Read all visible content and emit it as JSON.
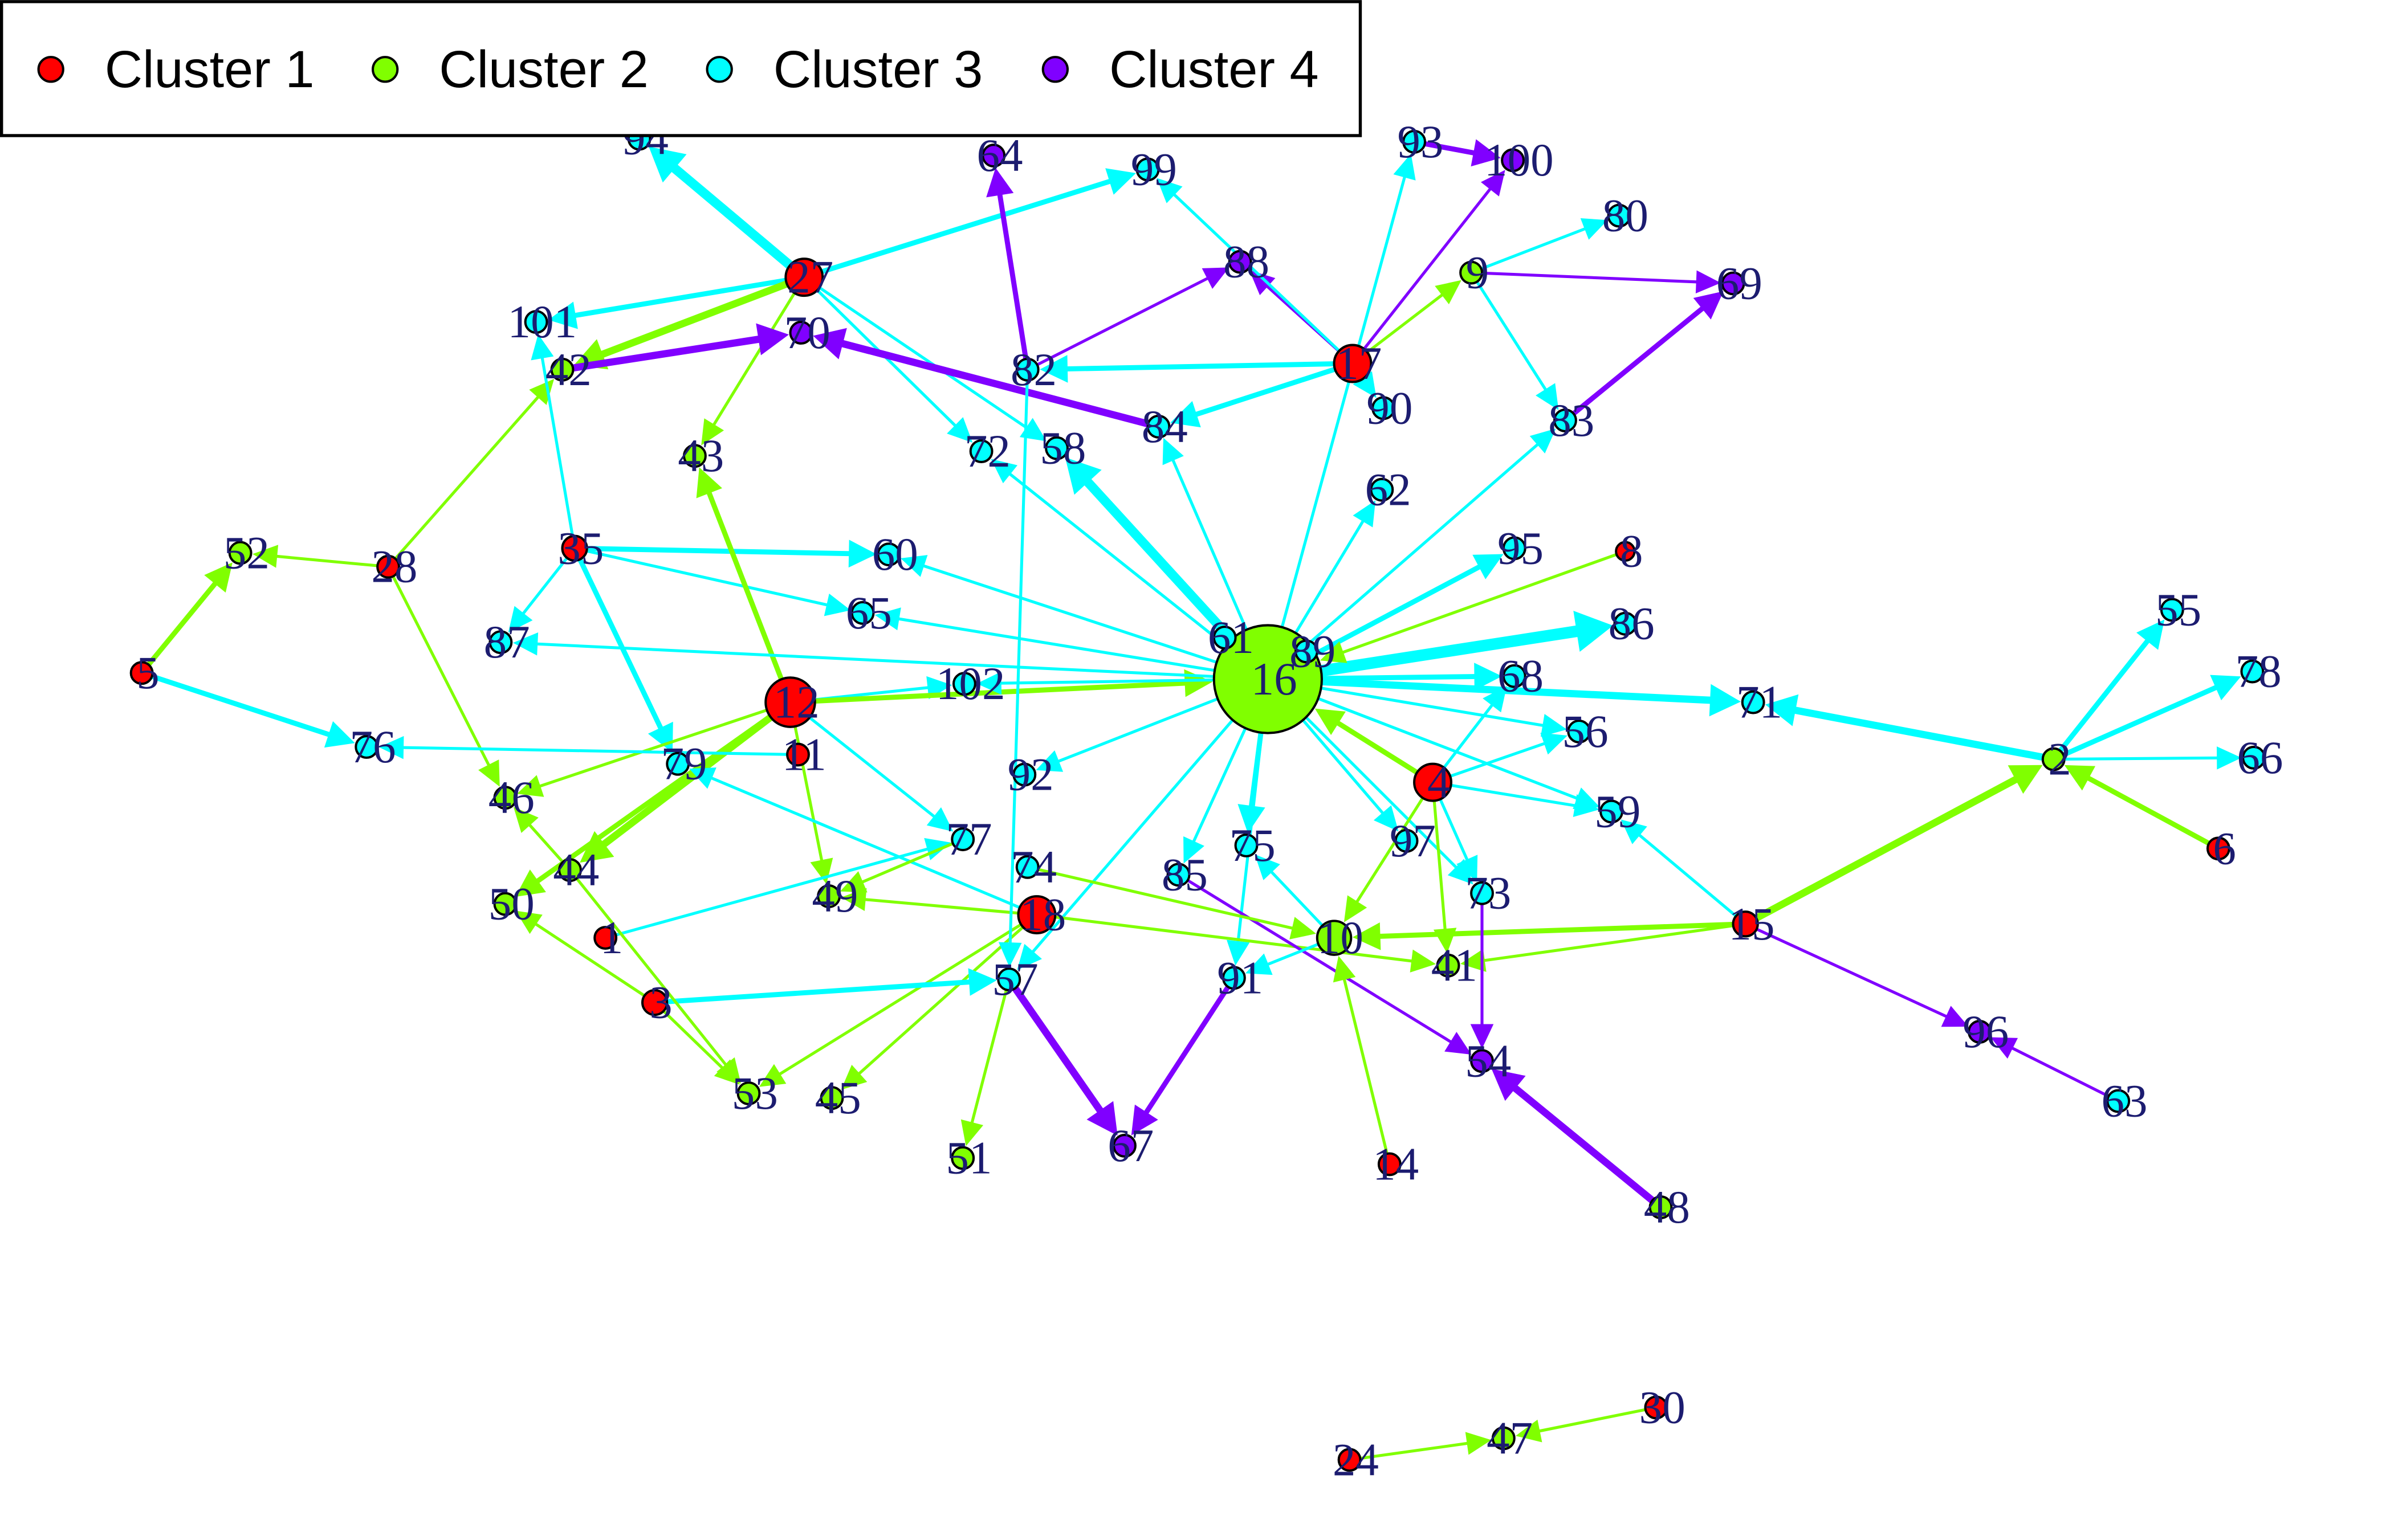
{
  "legend": {
    "items": [
      {
        "label": "Cluster 1",
        "color": "#ff0000"
      },
      {
        "label": "Cluster 2",
        "color": "#80ff00"
      },
      {
        "label": "Cluster 3",
        "color": "#00ffff"
      },
      {
        "label": "Cluster 4",
        "color": "#8000ff"
      }
    ]
  },
  "nodes": [
    {
      "label": "1",
      "cluster": 0
    },
    {
      "label": "2",
      "cluster": 1
    },
    {
      "label": "3",
      "cluster": 0
    },
    {
      "label": "4",
      "cluster": 0
    },
    {
      "label": "5",
      "cluster": 0
    },
    {
      "label": "6",
      "cluster": 0
    },
    {
      "label": "8",
      "cluster": 0
    },
    {
      "label": "9",
      "cluster": 1
    },
    {
      "label": "10",
      "cluster": 1
    },
    {
      "label": "11",
      "cluster": 0
    },
    {
      "label": "12",
      "cluster": 0
    },
    {
      "label": "14",
      "cluster": 0
    },
    {
      "label": "15",
      "cluster": 0
    },
    {
      "label": "16",
      "cluster": 1
    },
    {
      "label": "17",
      "cluster": 0
    },
    {
      "label": "18",
      "cluster": 0
    },
    {
      "label": "24",
      "cluster": 0
    },
    {
      "label": "27",
      "cluster": 0
    },
    {
      "label": "28",
      "cluster": 0
    },
    {
      "label": "30",
      "cluster": 0
    },
    {
      "label": "35",
      "cluster": 0
    },
    {
      "label": "41",
      "cluster": 1
    },
    {
      "label": "42",
      "cluster": 1
    },
    {
      "label": "43",
      "cluster": 1
    },
    {
      "label": "44",
      "cluster": 1
    },
    {
      "label": "45",
      "cluster": 1
    },
    {
      "label": "46",
      "cluster": 1
    },
    {
      "label": "47",
      "cluster": 1
    },
    {
      "label": "48",
      "cluster": 1
    },
    {
      "label": "49",
      "cluster": 1
    },
    {
      "label": "50",
      "cluster": 1
    },
    {
      "label": "51",
      "cluster": 1
    },
    {
      "label": "52",
      "cluster": 1
    },
    {
      "label": "53",
      "cluster": 1
    },
    {
      "label": "54",
      "cluster": 3
    },
    {
      "label": "55",
      "cluster": 2
    },
    {
      "label": "56",
      "cluster": 2
    },
    {
      "label": "57",
      "cluster": 2
    },
    {
      "label": "58",
      "cluster": 2
    },
    {
      "label": "59",
      "cluster": 2
    },
    {
      "label": "60",
      "cluster": 2
    },
    {
      "label": "61",
      "cluster": 2
    },
    {
      "label": "62",
      "cluster": 2
    },
    {
      "label": "63",
      "cluster": 2
    },
    {
      "label": "64",
      "cluster": 3
    },
    {
      "label": "65",
      "cluster": 2
    },
    {
      "label": "66",
      "cluster": 2
    },
    {
      "label": "67",
      "cluster": 3
    },
    {
      "label": "68",
      "cluster": 2
    },
    {
      "label": "69",
      "cluster": 3
    },
    {
      "label": "70",
      "cluster": 3
    },
    {
      "label": "71",
      "cluster": 2
    },
    {
      "label": "72",
      "cluster": 2
    },
    {
      "label": "73",
      "cluster": 2
    },
    {
      "label": "74",
      "cluster": 2
    },
    {
      "label": "75",
      "cluster": 2
    },
    {
      "label": "76",
      "cluster": 2
    },
    {
      "label": "77",
      "cluster": 2
    },
    {
      "label": "78",
      "cluster": 2
    },
    {
      "label": "79",
      "cluster": 2
    },
    {
      "label": "80",
      "cluster": 2
    },
    {
      "label": "82",
      "cluster": 2
    },
    {
      "label": "83",
      "cluster": 2
    },
    {
      "label": "84",
      "cluster": 2
    },
    {
      "label": "85",
      "cluster": 2
    },
    {
      "label": "86",
      "cluster": 2
    },
    {
      "label": "87",
      "cluster": 2
    },
    {
      "label": "88",
      "cluster": 3
    },
    {
      "label": "89",
      "cluster": 2
    },
    {
      "label": "90",
      "cluster": 2
    },
    {
      "label": "91",
      "cluster": 2
    },
    {
      "label": "92",
      "cluster": 2
    },
    {
      "label": "93",
      "cluster": 2
    },
    {
      "label": "94",
      "cluster": 2
    },
    {
      "label": "95",
      "cluster": 2
    },
    {
      "label": "96",
      "cluster": 3
    },
    {
      "label": "97",
      "cluster": 2
    },
    {
      "label": "99",
      "cluster": 2
    },
    {
      "label": "100",
      "cluster": 3
    },
    {
      "label": "101",
      "cluster": 2
    },
    {
      "label": "102",
      "cluster": 2
    }
  ],
  "edges": [
    {
      "from": "27",
      "to": "94",
      "weight": 4
    },
    {
      "from": "27",
      "to": "101",
      "weight": 2
    },
    {
      "from": "27",
      "to": "42",
      "weight": 3
    },
    {
      "from": "27",
      "to": "43",
      "weight": 1
    },
    {
      "from": "27",
      "to": "99",
      "weight": 2
    },
    {
      "from": "27",
      "to": "72",
      "weight": 1
    },
    {
      "from": "27",
      "to": "58",
      "weight": 1
    },
    {
      "from": "82",
      "to": "64",
      "weight": 2
    },
    {
      "from": "82",
      "to": "88",
      "weight": 1
    },
    {
      "from": "17",
      "to": "82",
      "weight": 2
    },
    {
      "from": "17",
      "to": "88",
      "weight": 1
    },
    {
      "from": "17",
      "to": "100",
      "weight": 1
    },
    {
      "from": "17",
      "to": "9",
      "weight": 1
    },
    {
      "from": "17",
      "to": "84",
      "weight": 2
    },
    {
      "from": "17",
      "to": "90",
      "weight": 1
    },
    {
      "from": "17",
      "to": "99",
      "weight": 1
    },
    {
      "from": "9",
      "to": "69",
      "weight": 1
    },
    {
      "from": "9",
      "to": "83",
      "weight": 1
    },
    {
      "from": "9",
      "to": "80",
      "weight": 1
    },
    {
      "from": "83",
      "to": "69",
      "weight": 2
    },
    {
      "from": "84",
      "to": "70",
      "weight": 3
    },
    {
      "from": "42",
      "to": "70",
      "weight": 3
    },
    {
      "from": "93",
      "to": "100",
      "weight": 2
    },
    {
      "from": "28",
      "to": "52",
      "weight": 1
    },
    {
      "from": "28",
      "to": "42",
      "weight": 1
    },
    {
      "from": "28",
      "to": "46",
      "weight": 1
    },
    {
      "from": "35",
      "to": "60",
      "weight": 2
    },
    {
      "from": "35",
      "to": "87",
      "weight": 1
    },
    {
      "from": "35",
      "to": "79",
      "weight": 2
    },
    {
      "from": "35",
      "to": "65",
      "weight": 1
    },
    {
      "from": "35",
      "to": "101",
      "weight": 1
    },
    {
      "from": "5",
      "to": "52",
      "weight": 2
    },
    {
      "from": "5",
      "to": "76",
      "weight": 2
    },
    {
      "from": "12",
      "to": "43",
      "weight": 2
    },
    {
      "from": "12",
      "to": "102",
      "weight": 1
    },
    {
      "from": "12",
      "to": "16",
      "weight": 2
    },
    {
      "from": "12",
      "to": "46",
      "weight": 1
    },
    {
      "from": "12",
      "to": "50",
      "weight": 2
    },
    {
      "from": "12",
      "to": "44",
      "weight": 3
    },
    {
      "from": "12",
      "to": "77",
      "weight": 1
    },
    {
      "from": "12",
      "to": "49",
      "weight": 1
    },
    {
      "from": "11",
      "to": "76",
      "weight": 1
    },
    {
      "from": "16",
      "to": "61",
      "weight": 1
    },
    {
      "from": "16",
      "to": "58",
      "weight": 4
    },
    {
      "from": "16",
      "to": "72",
      "weight": 1
    },
    {
      "from": "16",
      "to": "84",
      "weight": 1
    },
    {
      "from": "16",
      "to": "62",
      "weight": 1
    },
    {
      "from": "16",
      "to": "95",
      "weight": 2
    },
    {
      "from": "16",
      "to": "86",
      "weight": 5
    },
    {
      "from": "16",
      "to": "68",
      "weight": 2
    },
    {
      "from": "16",
      "to": "71",
      "weight": 3
    },
    {
      "from": "16",
      "to": "56",
      "weight": 1
    },
    {
      "from": "16",
      "to": "59",
      "weight": 1
    },
    {
      "from": "16",
      "to": "73",
      "weight": 1
    },
    {
      "from": "16",
      "to": "97",
      "weight": 1
    },
    {
      "from": "16",
      "to": "75",
      "weight": 2
    },
    {
      "from": "16",
      "to": "91",
      "weight": 1
    },
    {
      "from": "16",
      "to": "57",
      "weight": 1
    },
    {
      "from": "16",
      "to": "85",
      "weight": 1
    },
    {
      "from": "16",
      "to": "92",
      "weight": 1
    },
    {
      "from": "16",
      "to": "60",
      "weight": 1
    },
    {
      "from": "16",
      "to": "65",
      "weight": 1
    },
    {
      "from": "16",
      "to": "102",
      "weight": 1
    },
    {
      "from": "16",
      "to": "87",
      "weight": 1
    },
    {
      "from": "16",
      "to": "83",
      "weight": 1
    },
    {
      "from": "16",
      "to": "93",
      "weight": 1
    },
    {
      "from": "16",
      "to": "89",
      "weight": 1
    },
    {
      "from": "4",
      "to": "16",
      "weight": 2
    },
    {
      "from": "8",
      "to": "16",
      "weight": 1
    },
    {
      "from": "2",
      "to": "55",
      "weight": 2
    },
    {
      "from": "2",
      "to": "78",
      "weight": 2
    },
    {
      "from": "2",
      "to": "66",
      "weight": 1
    },
    {
      "from": "2",
      "to": "71",
      "weight": 3
    },
    {
      "from": "6",
      "to": "2",
      "weight": 2
    },
    {
      "from": "15",
      "to": "2",
      "weight": 3
    },
    {
      "from": "15",
      "to": "59",
      "weight": 1
    },
    {
      "from": "15",
      "to": "96",
      "weight": 1
    },
    {
      "from": "15",
      "to": "10",
      "weight": 2
    },
    {
      "from": "15",
      "to": "41",
      "weight": 1
    },
    {
      "from": "63",
      "to": "96",
      "weight": 1
    },
    {
      "from": "18",
      "to": "53",
      "weight": 1
    },
    {
      "from": "18",
      "to": "45",
      "weight": 1
    },
    {
      "from": "18",
      "to": "49",
      "weight": 1
    },
    {
      "from": "18",
      "to": "41",
      "weight": 1
    },
    {
      "from": "18",
      "to": "79",
      "weight": 1
    },
    {
      "from": "57",
      "to": "51",
      "weight": 1
    },
    {
      "from": "57",
      "to": "67",
      "weight": 3
    },
    {
      "from": "91",
      "to": "67",
      "weight": 2
    },
    {
      "from": "85",
      "to": "54",
      "weight": 1
    },
    {
      "from": "73",
      "to": "54",
      "weight": 1
    },
    {
      "from": "48",
      "to": "54",
      "weight": 3
    },
    {
      "from": "14",
      "to": "10",
      "weight": 1
    },
    {
      "from": "10",
      "to": "75",
      "weight": 1
    },
    {
      "from": "10",
      "to": "91",
      "weight": 1
    },
    {
      "from": "4",
      "to": "10",
      "weight": 1
    },
    {
      "from": "4",
      "to": "41",
      "weight": 1
    },
    {
      "from": "4",
      "to": "73",
      "weight": 1
    },
    {
      "from": "4",
      "to": "59",
      "weight": 1
    },
    {
      "from": "4",
      "to": "68",
      "weight": 1
    },
    {
      "from": "4",
      "to": "56",
      "weight": 1
    },
    {
      "from": "3",
      "to": "57",
      "weight": 2
    },
    {
      "from": "3",
      "to": "53",
      "weight": 1
    },
    {
      "from": "3",
      "to": "50",
      "weight": 1
    },
    {
      "from": "1",
      "to": "77",
      "weight": 1
    },
    {
      "from": "44",
      "to": "53",
      "weight": 1
    },
    {
      "from": "44",
      "to": "46",
      "weight": 1
    },
    {
      "from": "24",
      "to": "47",
      "weight": 1
    },
    {
      "from": "30",
      "to": "47",
      "weight": 1
    },
    {
      "from": "77",
      "to": "49",
      "weight": 1
    },
    {
      "from": "74",
      "to": "10",
      "weight": 1
    },
    {
      "from": "82",
      "to": "57",
      "weight": 1
    }
  ]
}
